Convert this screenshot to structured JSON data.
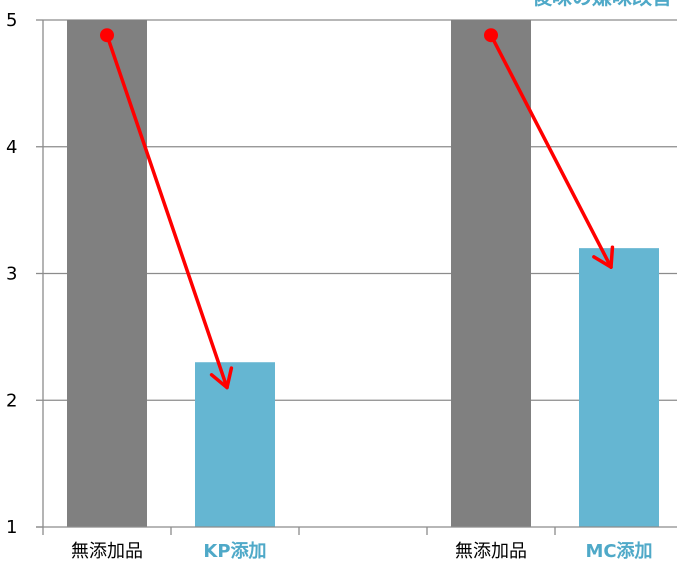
{
  "chart_data": {
    "type": "bar",
    "title_fragment": "後味の嫌味改善",
    "categories": [
      "無添加品",
      "KP添加",
      "",
      "無添加品",
      "MC添加"
    ],
    "values": [
      5,
      2.3,
      null,
      5,
      3.2
    ],
    "bar_colors": [
      "#808080",
      "#65b6d2",
      null,
      "#808080",
      "#65b6d2"
    ],
    "label_colors": [
      "#000000",
      "#4fa9c8",
      null,
      "#000000",
      "#4fa9c8"
    ],
    "ylim": [
      1,
      5
    ],
    "yticks": [
      "1",
      "2",
      "3",
      "4",
      "5"
    ],
    "grid": true,
    "arrows": [
      {
        "from_category": 0,
        "from_value": 4.88,
        "to_category": 1,
        "to_value": 2.1
      },
      {
        "from_category": 3,
        "from_value": 4.88,
        "to_category": 4,
        "to_value": 3.05
      }
    ],
    "arrow_color": "#ff0000",
    "marker_color": "#ff0000"
  }
}
